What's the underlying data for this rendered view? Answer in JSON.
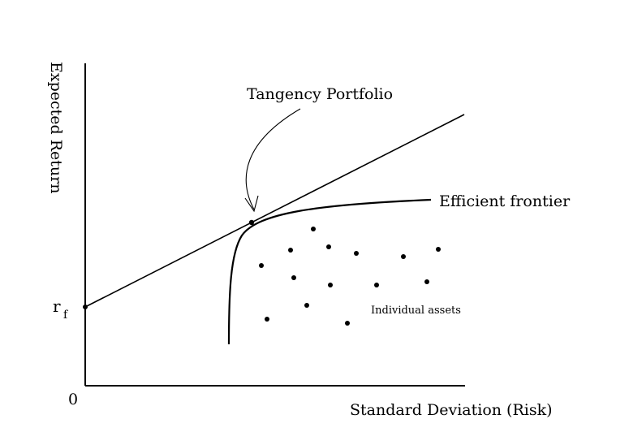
{
  "diagram": {
    "ylabel": "Expected Return",
    "xlabel": "Standard Deviation (Risk)",
    "origin_label": "0",
    "rf_label": "r",
    "rf_subscript": "f",
    "tangency_label": "Tangency Portfolio",
    "frontier_label": "Efficient frontier",
    "assets_label": "Individual assets"
  },
  "colors": {
    "ink": "#000000",
    "background": "#ffffff"
  }
}
